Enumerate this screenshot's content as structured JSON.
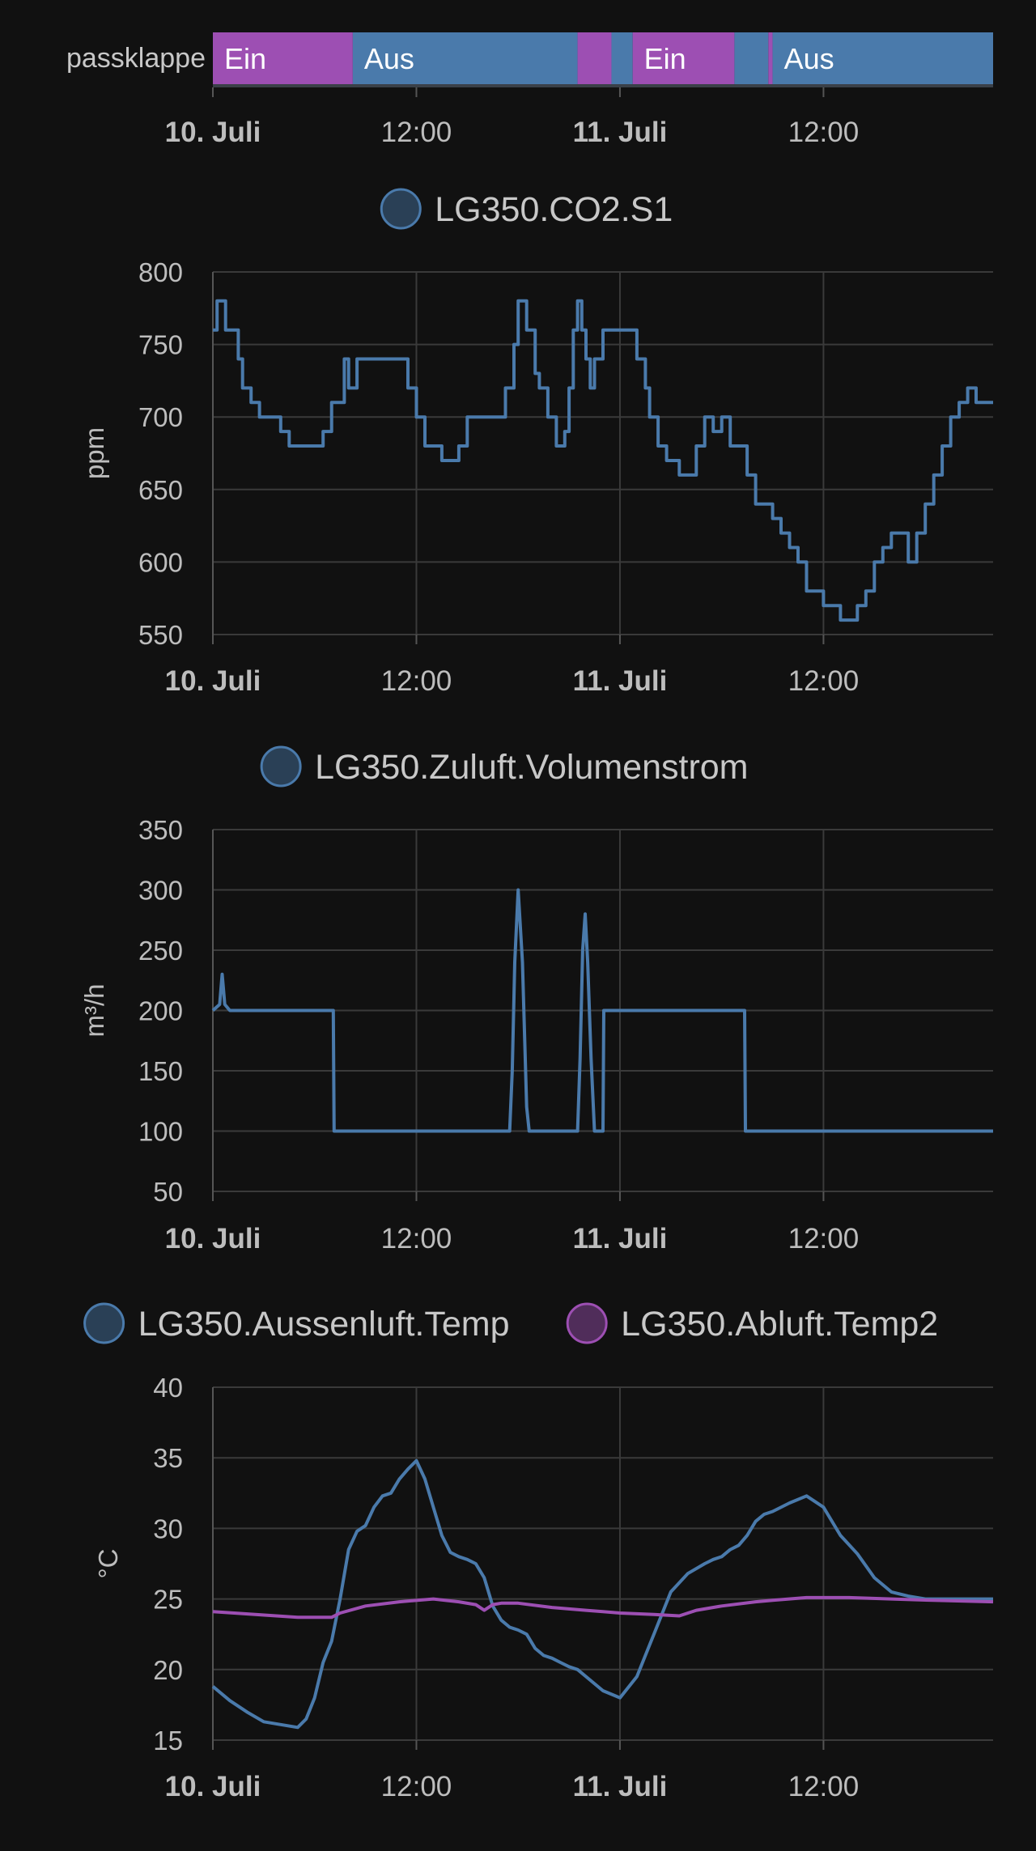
{
  "colors": {
    "background": "#111111",
    "blue": "#4a7aab",
    "purple": "#9d4fb3",
    "grid": "#3a3a3a",
    "text": "#bdbdbd"
  },
  "timeline": {
    "entity_label": "passklappe",
    "segments": [
      {
        "start": 0.0,
        "end": 16.5,
        "state": "Ein",
        "color": "purple"
      },
      {
        "start": 16.5,
        "end": 43.0,
        "state": "Aus",
        "color": "blue"
      },
      {
        "start": 43.0,
        "end": 47.0,
        "state": "",
        "color": "purple"
      },
      {
        "start": 47.0,
        "end": 49.5,
        "state": "",
        "color": "blue"
      },
      {
        "start": 49.5,
        "end": 61.5,
        "state": "Ein",
        "color": "purple"
      },
      {
        "start": 61.5,
        "end": 65.5,
        "state": "",
        "color": "blue"
      },
      {
        "start": 65.5,
        "end": 66.0,
        "state": "",
        "color": "purple"
      },
      {
        "start": 66.0,
        "end": 92.0,
        "state": "Aus",
        "color": "blue"
      }
    ]
  },
  "x_axis": {
    "labels": [
      {
        "hour": 0,
        "text": "10. Juli",
        "bold": true
      },
      {
        "hour": 24,
        "text": "12:00",
        "bold": false
      },
      {
        "hour": 48,
        "text": "11. Juli",
        "bold": true
      },
      {
        "hour": 72,
        "text": "12:00",
        "bold": false
      }
    ]
  },
  "chart_data": [
    {
      "type": "line",
      "legend": [
        "LG350.CO2.S1"
      ],
      "ylabel": "ppm",
      "ylim": [
        550,
        800
      ],
      "yticks": [
        800,
        750,
        700,
        650,
        600,
        550
      ],
      "x_unit": "hours since 10. Juli 00:00",
      "xlim": [
        0,
        92
      ],
      "series": [
        {
          "name": "LG350.CO2.S1",
          "color": "blue",
          "step": true,
          "x": [
            0,
            0.5,
            1.5,
            3,
            3.5,
            4.5,
            5.5,
            8,
            9,
            10,
            12,
            13,
            14,
            15.5,
            16,
            17,
            18,
            19,
            19.5,
            20.5,
            22,
            23,
            24,
            25,
            27,
            29,
            30,
            31,
            33,
            34.5,
            35.5,
            36,
            37,
            38,
            38.5,
            39.5,
            40.5,
            41.5,
            42,
            42.5,
            43,
            43.5,
            44,
            44.5,
            45,
            46,
            47,
            48,
            49,
            50,
            51,
            51.5,
            52.5,
            53.5,
            55,
            56,
            57,
            58,
            59,
            60,
            61,
            62,
            63,
            64,
            65,
            66,
            67,
            68,
            69,
            70,
            71,
            72,
            74,
            76,
            77,
            78,
            79,
            80,
            81,
            82,
            83,
            84,
            85,
            86,
            87,
            88,
            89,
            90,
            92
          ],
          "y": [
            760,
            780,
            760,
            740,
            720,
            710,
            700,
            690,
            680,
            680,
            680,
            690,
            710,
            740,
            720,
            740,
            740,
            740,
            740,
            740,
            740,
            720,
            700,
            680,
            670,
            680,
            700,
            700,
            700,
            720,
            750,
            780,
            760,
            730,
            720,
            700,
            680,
            690,
            720,
            760,
            780,
            760,
            740,
            720,
            740,
            760,
            760,
            760,
            760,
            740,
            720,
            700,
            680,
            670,
            660,
            660,
            680,
            700,
            690,
            700,
            680,
            680,
            660,
            640,
            640,
            630,
            620,
            610,
            600,
            580,
            580,
            570,
            560,
            570,
            580,
            600,
            610,
            620,
            620,
            600,
            620,
            640,
            660,
            680,
            700,
            710,
            720,
            710,
            710
          ]
        }
      ]
    },
    {
      "type": "line",
      "legend": [
        "LG350.Zuluft.Volumenstrom"
      ],
      "ylabel": "m³/h",
      "ylim": [
        50,
        350
      ],
      "yticks": [
        350,
        300,
        250,
        200,
        150,
        100,
        50
      ],
      "x_unit": "hours since 10. Juli 00:00",
      "xlim": [
        0,
        92
      ],
      "series": [
        {
          "name": "LG350.Zuluft.Volumenstrom",
          "color": "blue",
          "step": false,
          "x": [
            0,
            0.8,
            1.1,
            1.4,
            2,
            13,
            14.2,
            14.3,
            20,
            25,
            30,
            35,
            35.3,
            35.6,
            36.0,
            36.5,
            37.0,
            37.3,
            40,
            43,
            43.3,
            43.6,
            43.9,
            44.2,
            44.6,
            45.0,
            46.0,
            46.1,
            47.0,
            59.0,
            62.7,
            62.8,
            70,
            80,
            90,
            92
          ],
          "y": [
            200,
            205,
            230,
            205,
            200,
            200,
            200,
            100,
            100,
            100,
            100,
            100,
            150,
            240,
            300,
            240,
            120,
            100,
            100,
            100,
            160,
            250,
            280,
            240,
            160,
            100,
            100,
            200,
            200,
            200,
            200,
            100,
            100,
            100,
            100,
            100
          ]
        }
      ]
    },
    {
      "type": "line",
      "legend": [
        "LG350.Aussenluft.Temp",
        "LG350.Abluft.Temp2"
      ],
      "ylabel": "°C",
      "ylim": [
        15,
        40
      ],
      "yticks": [
        40,
        35,
        30,
        25,
        20,
        15
      ],
      "x_unit": "hours since 10. Juli 00:00",
      "xlim": [
        0,
        92
      ],
      "series": [
        {
          "name": "LG350.Aussenluft.Temp",
          "color": "blue",
          "step": false,
          "x": [
            0,
            2,
            4,
            6,
            8,
            10,
            11,
            12,
            13,
            14,
            15,
            16,
            17,
            18,
            19,
            20,
            21,
            22,
            23,
            24,
            25,
            26,
            27,
            28,
            29,
            30,
            31,
            32,
            33,
            34,
            35,
            36,
            37,
            38,
            39,
            40,
            41,
            42,
            43,
            44,
            46,
            48,
            50,
            52,
            54,
            56,
            58,
            59,
            60,
            61,
            62,
            63,
            64,
            65,
            66,
            68,
            70,
            72,
            74,
            76,
            78,
            80,
            82,
            83,
            84,
            85,
            86,
            87,
            88,
            89,
            90,
            91,
            92
          ],
          "y": [
            18.8,
            17.8,
            17.0,
            16.3,
            16.1,
            15.9,
            16.5,
            18.0,
            20.5,
            22.0,
            25.0,
            28.5,
            29.8,
            30.2,
            31.5,
            32.3,
            32.5,
            33.5,
            34.2,
            34.8,
            33.5,
            31.5,
            29.5,
            28.3,
            28.0,
            27.8,
            27.5,
            26.5,
            24.5,
            23.5,
            23.0,
            22.8,
            22.5,
            21.5,
            21.0,
            20.8,
            20.5,
            20.2,
            20.0,
            19.5,
            18.5,
            18.0,
            19.5,
            22.5,
            25.5,
            26.8,
            27.5,
            27.8,
            28.0,
            28.5,
            28.8,
            29.5,
            30.5,
            31.0,
            31.2,
            31.8,
            32.3,
            31.5,
            29.5,
            28.2,
            26.5,
            25.5,
            25.2,
            25.1,
            25.0,
            25.0,
            25.0,
            25.0,
            25.0,
            25.0,
            25.0,
            25.0,
            25.0
          ]
        },
        {
          "name": "LG350.Abluft.Temp2",
          "color": "purple",
          "step": false,
          "x": [
            0,
            5,
            10,
            14,
            15,
            18,
            22,
            26,
            29,
            31,
            32,
            33,
            34,
            36,
            40,
            44,
            46,
            48,
            52,
            55,
            57,
            60,
            64,
            66,
            70,
            75,
            80,
            85,
            92
          ],
          "y": [
            24.1,
            23.9,
            23.7,
            23.7,
            24.0,
            24.5,
            24.8,
            25.0,
            24.8,
            24.6,
            24.2,
            24.6,
            24.7,
            24.7,
            24.4,
            24.2,
            24.1,
            24.0,
            23.9,
            23.8,
            24.2,
            24.5,
            24.8,
            24.9,
            25.1,
            25.1,
            25.0,
            24.9,
            24.8
          ]
        }
      ]
    }
  ]
}
